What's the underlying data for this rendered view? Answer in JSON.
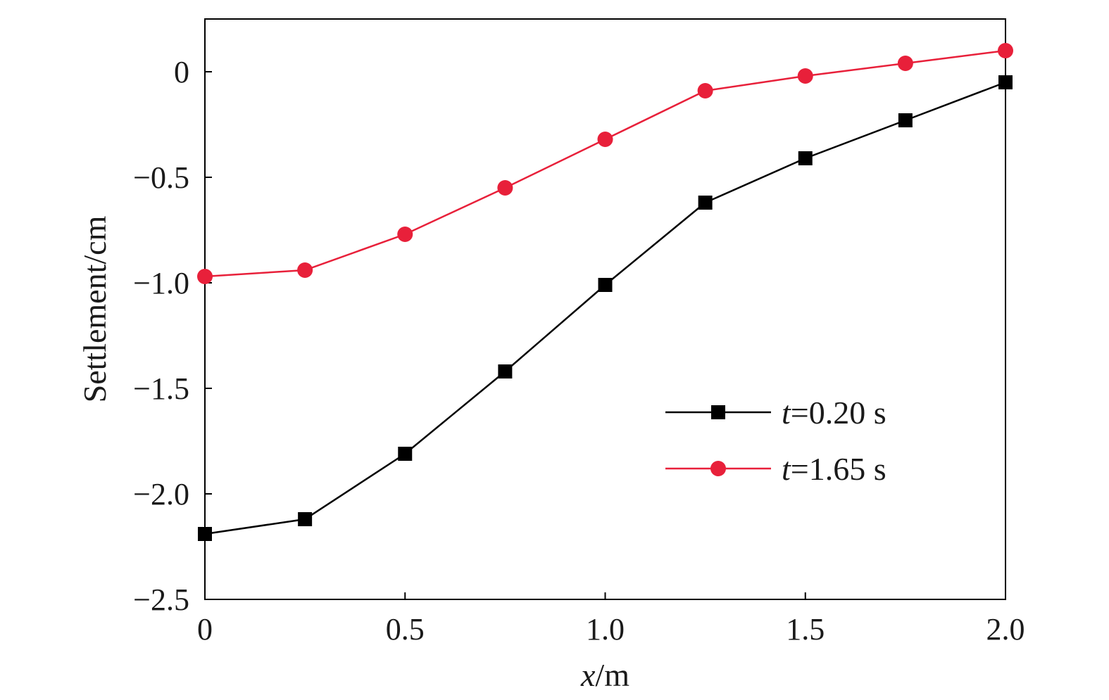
{
  "chart_data": {
    "type": "line",
    "xlabel": {
      "var": "x",
      "unit": "/m"
    },
    "ylabel": "Settlement/cm",
    "xlim": [
      0,
      2.0
    ],
    "ylim": [
      -2.5,
      0.25
    ],
    "xticks": [
      0,
      0.5,
      1.0,
      1.5,
      2.0
    ],
    "xtick_labels": [
      "0",
      "0.5",
      "1.0",
      "1.5",
      "2.0"
    ],
    "yticks": [
      0,
      -0.5,
      -1.0,
      -1.5,
      -2.0,
      -2.5
    ],
    "ytick_labels": [
      "0",
      "−0.5",
      "−1.0",
      "−1.5",
      "−2.0",
      "−2.5"
    ],
    "grid": false,
    "legend_position": "lower-right",
    "x": [
      0,
      0.25,
      0.5,
      0.75,
      1.0,
      1.25,
      1.5,
      1.75,
      2.0
    ],
    "series": [
      {
        "name": "t=0.20 s",
        "legend_var": "t",
        "legend_value": "=0.20 s",
        "color": "#000000",
        "marker": "square",
        "values": [
          -2.19,
          -2.12,
          -1.81,
          -1.42,
          -1.01,
          -0.62,
          -0.41,
          -0.23,
          -0.05
        ]
      },
      {
        "name": "t=1.65 s",
        "legend_var": "t",
        "legend_value": "=1.65 s",
        "color": "#e8203a",
        "marker": "circle",
        "values": [
          -0.97,
          -0.94,
          -0.77,
          -0.55,
          -0.32,
          -0.09,
          -0.02,
          0.04,
          0.1
        ]
      }
    ]
  }
}
